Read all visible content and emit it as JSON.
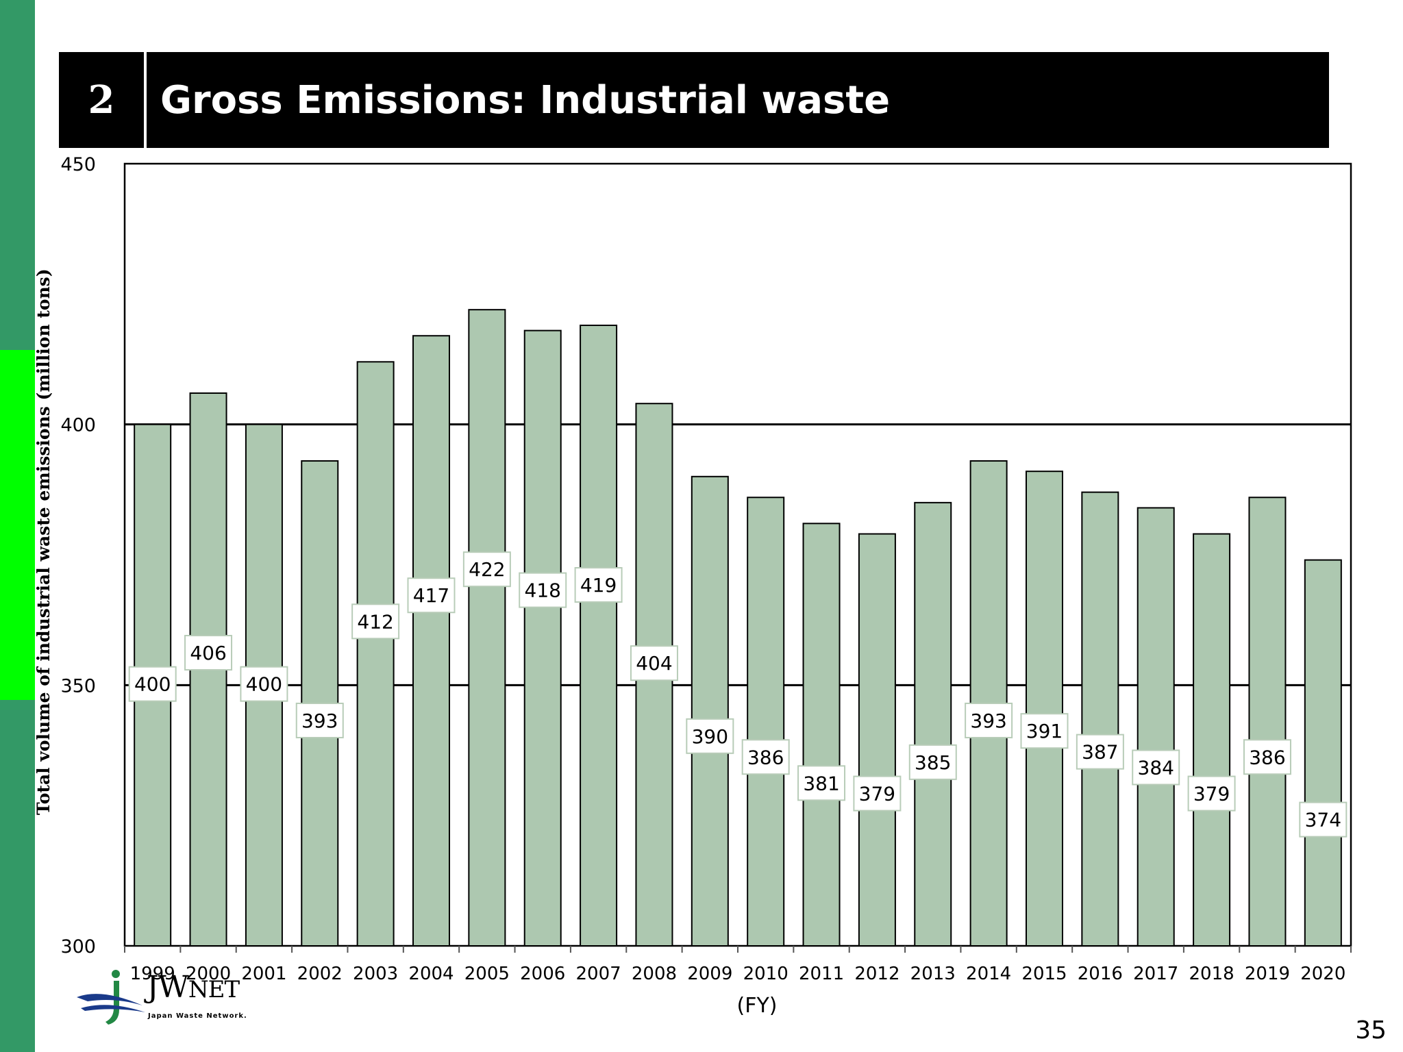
{
  "header": {
    "number": "2",
    "title": "Gross Emissions: Industrial waste"
  },
  "page_number": "35",
  "logo": {
    "main": "JW",
    "suffix": "NET",
    "subtitle": "Japan Waste Network."
  },
  "colors": {
    "sidebar_dark": "#339966",
    "sidebar_bright": "#00ff00",
    "bar_fill": "#adc8b0",
    "header_bg": "#000000"
  },
  "chart_data": {
    "type": "bar",
    "title": "Gross Emissions: Industrial waste",
    "xlabel": "(FY)",
    "ylabel": "Total volume of industrial waste emissions (million tons)",
    "ylim": [
      300,
      450
    ],
    "yticks": [
      300,
      350,
      400,
      450
    ],
    "gridlines": [
      350,
      400
    ],
    "categories": [
      "1999",
      "2000",
      "2001",
      "2002",
      "2003",
      "2004",
      "2005",
      "2006",
      "2007",
      "2008",
      "2009",
      "2010",
      "2011",
      "2012",
      "2013",
      "2014",
      "2015",
      "2016",
      "2017",
      "2018",
      "2019",
      "2020"
    ],
    "values": [
      400,
      406,
      400,
      393,
      412,
      417,
      422,
      418,
      419,
      404,
      390,
      386,
      381,
      379,
      385,
      393,
      391,
      387,
      384,
      379,
      386,
      374
    ],
    "data_labels": true
  }
}
